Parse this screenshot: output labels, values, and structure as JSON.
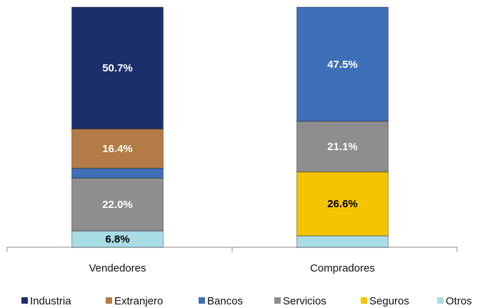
{
  "chart_data": {
    "type": "stacked_bar",
    "categories": [
      "Vendedores",
      "Compradores"
    ],
    "series": [
      {
        "name": "Industria",
        "color": "#1c2f6b",
        "values": [
          50.7,
          0
        ],
        "value_labels": [
          "50.7%",
          null
        ]
      },
      {
        "name": "Extranjero",
        "color": "#b37b45",
        "values": [
          16.4,
          0
        ],
        "value_labels": [
          "16.4%",
          null
        ]
      },
      {
        "name": "Bancos",
        "color": "#3f6fb6",
        "values": [
          4.1,
          47.5
        ],
        "value_labels": [
          null,
          "47.5%"
        ]
      },
      {
        "name": "Servicios",
        "color": "#8e8e8e",
        "values": [
          22.0,
          21.1
        ],
        "value_labels": [
          "22.0%",
          "21.1%"
        ]
      },
      {
        "name": "Seguros",
        "color": "#f5c400",
        "values": [
          0,
          26.6
        ],
        "value_labels": [
          null,
          "26.6%"
        ]
      },
      {
        "name": "Otros",
        "color": "#a9dde6",
        "values": [
          6.8,
          4.8
        ],
        "value_labels": [
          "6.8%",
          null
        ]
      }
    ],
    "ylim": [
      0,
      100
    ],
    "legend": "bottom"
  }
}
